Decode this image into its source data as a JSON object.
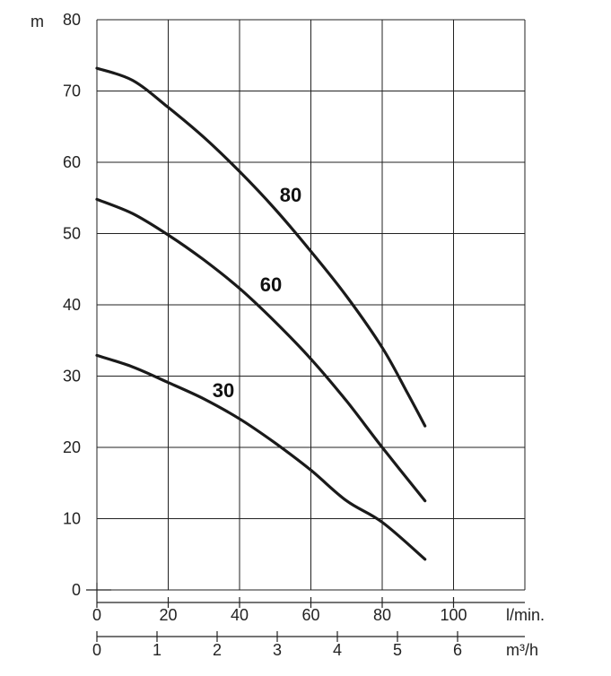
{
  "chart_data": {
    "type": "line",
    "ylabel": "m",
    "xlabel": "l/min.",
    "x2label": "m³/h",
    "xlim": [
      0,
      120
    ],
    "ylim": [
      0,
      80
    ],
    "x_ticks": [
      0,
      20,
      40,
      60,
      80,
      100
    ],
    "y_ticks": [
      0,
      10,
      20,
      30,
      40,
      50,
      60,
      70,
      80
    ],
    "x2_ticks": [
      0,
      1,
      2,
      3,
      4,
      5,
      6
    ],
    "grid": true,
    "series": [
      {
        "name": "80",
        "x": [
          0,
          10,
          20,
          30,
          40,
          50,
          60,
          70,
          80,
          87,
          92
        ],
        "y": [
          73.2,
          71.5,
          67.7,
          63.5,
          58.7,
          53.4,
          47.5,
          41.2,
          34.0,
          27.7,
          23
        ]
      },
      {
        "name": "60",
        "x": [
          0,
          10,
          20,
          30,
          40,
          50,
          60,
          70,
          80,
          92
        ],
        "y": [
          54.8,
          52.8,
          49.8,
          46.3,
          42.3,
          37.6,
          32.4,
          26.5,
          20.0,
          12.5
        ]
      },
      {
        "name": "30",
        "x": [
          0,
          10,
          20,
          30,
          40,
          50,
          60,
          70,
          80,
          92
        ],
        "y": [
          32.9,
          31.3,
          29.1,
          26.8,
          24.0,
          20.6,
          16.8,
          12.5,
          9.5,
          4.3
        ]
      }
    ]
  }
}
